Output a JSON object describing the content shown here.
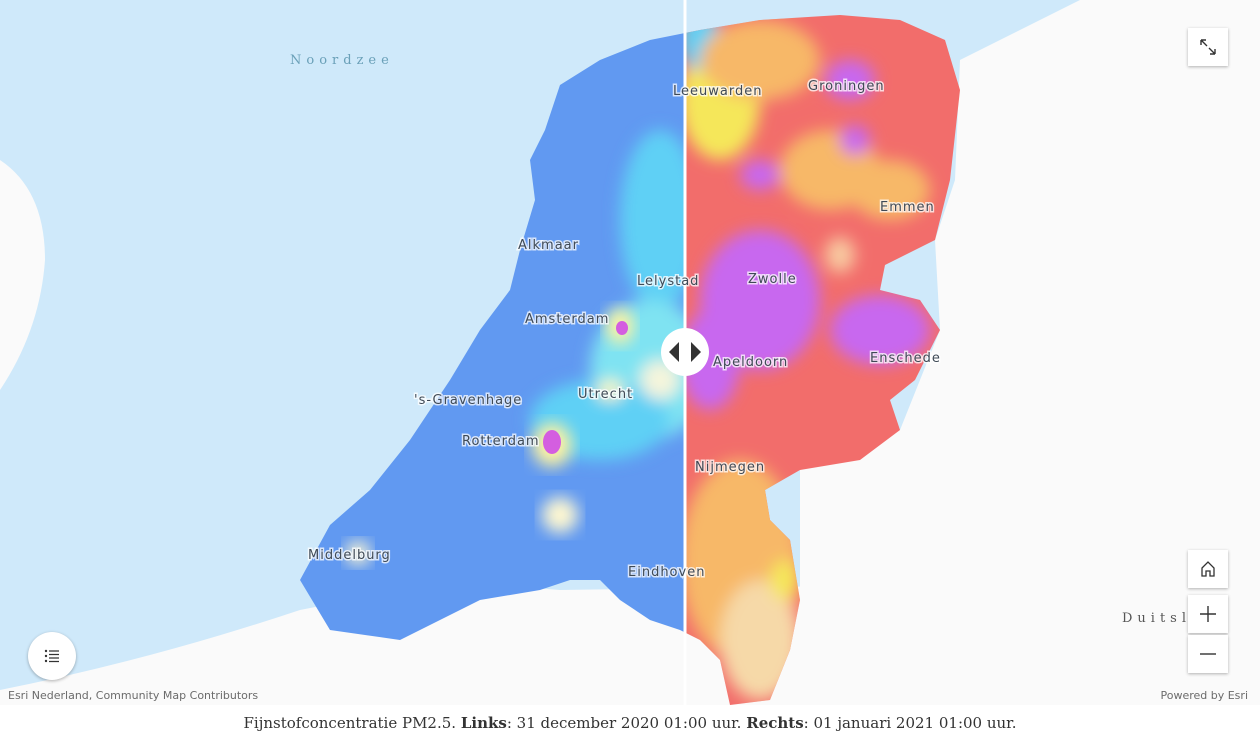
{
  "map": {
    "labels": [
      "Noordzee",
      "Leeuwarden",
      "Groningen",
      "Emmen",
      "Alkmaar",
      "Lelystad",
      "Zwolle",
      "Amsterdam",
      "Apeldoorn",
      "Enschede",
      "'s-Gravenhage",
      "Utrecht",
      "Rotterdam",
      "Nijmegen",
      "Middelburg",
      "Eindhoven",
      "Duitsl"
    ],
    "attribution": "Esri Nederland, Community Map Contributors",
    "powered_by": "Powered by Esri"
  },
  "caption": {
    "parts": [
      "Fijnstofconcentratie PM2.5. ",
      "Links",
      ": 31 december 2020 01:00 uur. ",
      "Rechts",
      ": 01 januari 2021 01:00 uur."
    ]
  }
}
